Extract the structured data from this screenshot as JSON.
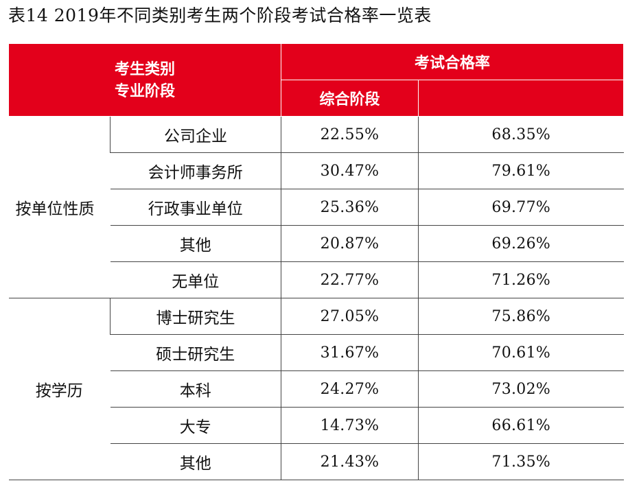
{
  "caption": "表14  2019年不同类别考生两个阶段考试合格率一览表",
  "header": {
    "category_line1": "考生类别",
    "category_line2": "专业阶段",
    "rate": "考试合格率",
    "comprehensive": "综合阶段"
  },
  "groups": [
    {
      "label": "按单位性质",
      "rows": [
        {
          "name": "公司企业",
          "comprehensive": "22.55%",
          "professional": "68.35%"
        },
        {
          "name": "会计师事务所",
          "comprehensive": "30.47%",
          "professional": "79.61%"
        },
        {
          "name": "行政事业单位",
          "comprehensive": "25.36%",
          "professional": "69.77%"
        },
        {
          "name": "其他",
          "comprehensive": "20.87%",
          "professional": "69.26%"
        },
        {
          "name": "无单位",
          "comprehensive": "22.77%",
          "professional": "71.26%"
        }
      ]
    },
    {
      "label": "按学历",
      "rows": [
        {
          "name": "博士研究生",
          "comprehensive": "27.05%",
          "professional": "75.86%"
        },
        {
          "name": "硕士研究生",
          "comprehensive": "31.67%",
          "professional": "70.61%"
        },
        {
          "name": "本科",
          "comprehensive": "24.27%",
          "professional": "73.02%"
        },
        {
          "name": "大专",
          "comprehensive": "14.73%",
          "professional": "66.61%"
        },
        {
          "name": "其他",
          "comprehensive": "21.43%",
          "professional": "71.35%"
        }
      ]
    }
  ]
}
